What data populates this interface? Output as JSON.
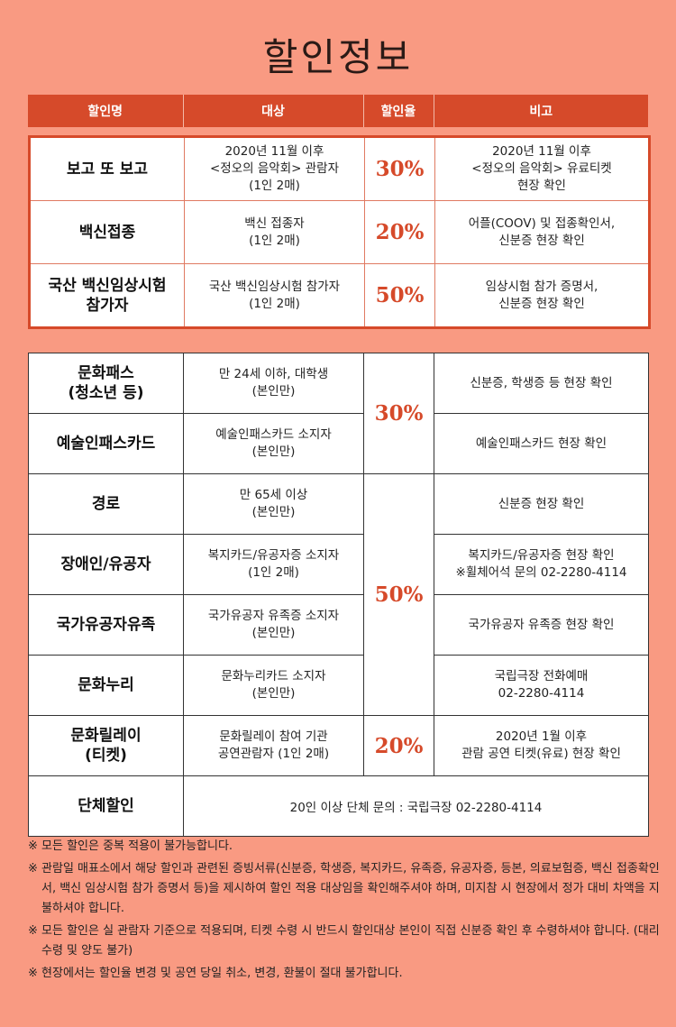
{
  "title": "할인정보",
  "headers": [
    "할인명",
    "대상",
    "할인율",
    "비고"
  ],
  "table1": [
    {
      "name": "보고 또 보고",
      "target": "2020년 11월 이후\n<정오의 음악회> 관람자\n(1인 2매)",
      "rate": "30%",
      "note": "2020년 11월 이후\n<정오의 음악회> 유료티켓\n현장 확인"
    },
    {
      "name": "백신접종",
      "target": "백신 접종자\n(1인 2매)",
      "rate": "20%",
      "note": "어플(COOV) 및 접종확인서,\n신분증 현장 확인"
    },
    {
      "name": "국산 백신임상시험\n참가자",
      "target": "국산 백신임상시험 참가자\n(1인 2매)",
      "rate": "50%",
      "note": "임상시험 참가 증명서,\n신분증 현장 확인"
    }
  ],
  "table2": {
    "rate_30": "30%",
    "rate_50": "50%",
    "rate_20": "20%",
    "rows": [
      {
        "name": "문화패스\n(청소년 등)",
        "target": "만 24세 이하, 대학생\n(본인만)",
        "note": "신분증, 학생증 등 현장 확인"
      },
      {
        "name": "예술인패스카드",
        "target": "예술인패스카드 소지자\n(본인만)",
        "note": "예술인패스카드 현장 확인"
      },
      {
        "name": "경로",
        "target": "만 65세 이상\n(본인만)",
        "note": "신분증 현장 확인"
      },
      {
        "name": "장애인/유공자",
        "target": "복지카드/유공자증 소지자\n(1인 2매)",
        "note": "복지카드/유공자증 현장 확인\n※휠체어석 문의 02-2280-4114"
      },
      {
        "name": "국가유공자유족",
        "target": "국가유공자 유족증 소지자\n(본인만)",
        "note": "국가유공자 유족증 현장 확인"
      },
      {
        "name": "문화누리",
        "target": "문화누리카드 소지자\n(본인만)",
        "note": "국립극장 전화예매\n02-2280-4114"
      },
      {
        "name": "문화릴레이\n(티켓)",
        "target": "문화릴레이 참여 기관\n공연관람자 (1인 2매)",
        "note": "2020년 1월 이후\n관람 공연 티켓(유료) 현장 확인"
      }
    ],
    "group": {
      "name": "단체할인",
      "note": "20인 이상 단체 문의 : 국립극장 02-2280-4114"
    }
  },
  "notes": [
    "※ 모든 할인은 중복 적용이 불가능합니다.",
    "※ 관람일 매표소에서 해당 할인과 관련된 증빙서류(신분증, 학생증, 복지카드, 유족증, 유공자증, 등본, 의료보험증, 백신 접종확인서, 백신 임상시험 참가 증명서 등)을 제시하여 할인 적용 대상임을 확인해주셔야 하며, 미지참 시 현장에서 정가 대비 차액을 지불하셔야 합니다.",
    "※ 모든 할인은 실 관람자 기준으로 적용되며, 티켓 수령 시 반드시 할인대상 본인이 직접 신분증 확인 후 수령하셔야 합니다. (대리수령 및 양도 불가)",
    "※ 현장에서는 할인율 변경 및 공연 당일 취소, 변경, 환불이 절대 불가합니다."
  ],
  "colors": {
    "accent": "#d64a2a",
    "background": "#f99a82"
  }
}
